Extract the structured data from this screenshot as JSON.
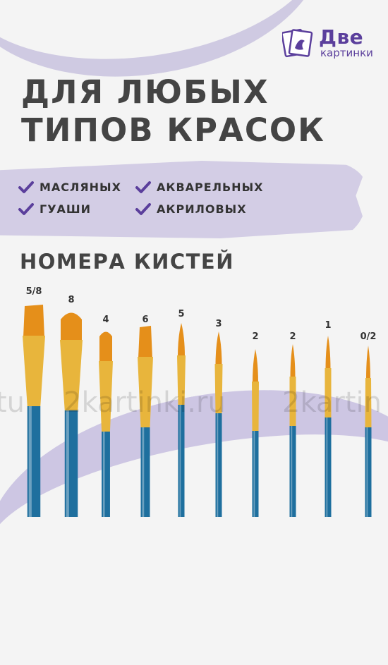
{
  "logo": {
    "title": "Две",
    "subtitle": "картинки"
  },
  "headline": {
    "line1": "ДЛЯ ЛЮБЫХ",
    "line2": "ТИПОВ КРАСОК"
  },
  "paints": [
    "МАСЛЯНЫХ",
    "АКВАРЕЛЬНЫХ",
    "ГУАШИ",
    "АКРИЛОВЫХ"
  ],
  "section_title": "НОМЕРА КИСТЕЙ",
  "brushes": [
    {
      "size": "5/8",
      "shape": "flat"
    },
    {
      "size": "8",
      "shape": "filbert"
    },
    {
      "size": "4",
      "shape": "filbert"
    },
    {
      "size": "6",
      "shape": "flat"
    },
    {
      "size": "5",
      "shape": "round"
    },
    {
      "size": "3",
      "shape": "round"
    },
    {
      "size": "2",
      "shape": "round"
    },
    {
      "size": "2",
      "shape": "round"
    },
    {
      "size": "1",
      "shape": "round"
    },
    {
      "size": "0/2",
      "shape": "round"
    }
  ],
  "watermark": [
    "tu",
    "2kartinki.ru",
    "2kartin"
  ],
  "colors": {
    "accent": "#5b3f9c",
    "band": "#d3cde5",
    "handle": "#1e6f9e",
    "ferrule": "#e8b53c",
    "bristle": "#e58f1a"
  }
}
